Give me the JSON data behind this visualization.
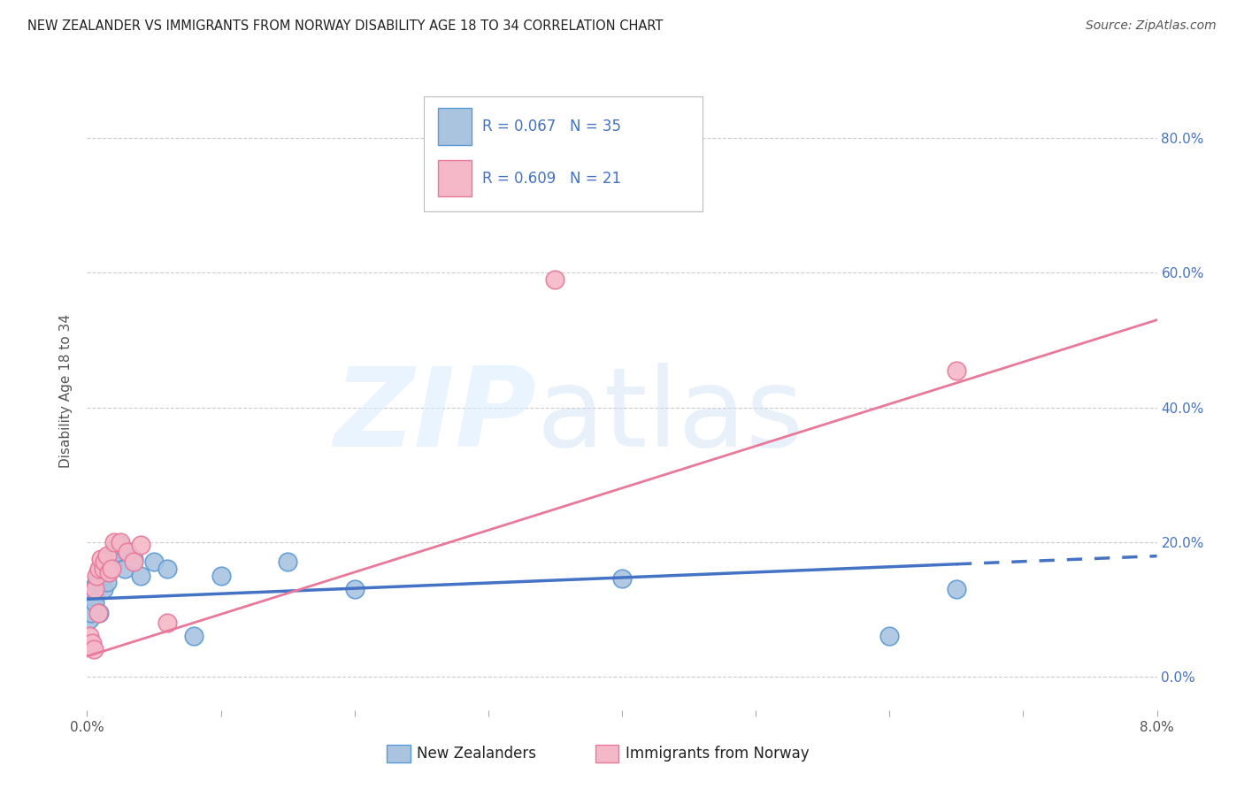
{
  "title": "NEW ZEALANDER VS IMMIGRANTS FROM NORWAY DISABILITY AGE 18 TO 34 CORRELATION CHART",
  "source": "Source: ZipAtlas.com",
  "ylabel": "Disability Age 18 to 34",
  "xlim": [
    0.0,
    0.08
  ],
  "ylim": [
    -0.05,
    0.9
  ],
  "background_color": "#ffffff",
  "nz_color": "#aac4e0",
  "nz_edge_color": "#5b9bd5",
  "norway_color": "#f4b8c8",
  "norway_edge_color": "#e8799a",
  "nz_line_color": "#4472c4",
  "norway_line_color": "#e8799a",
  "nz_R": 0.067,
  "nz_N": 35,
  "norway_R": 0.609,
  "norway_N": 21,
  "legend_label_nz": "New Zealanders",
  "legend_label_norway": "Immigrants from Norway",
  "nz_x": [
    0.0002,
    0.0003,
    0.0004,
    0.0005,
    0.0006,
    0.0007,
    0.0008,
    0.0009,
    0.001,
    0.0011,
    0.0012,
    0.0013,
    0.0014,
    0.0015,
    0.0016,
    0.0017,
    0.0018,
    0.0019,
    0.002,
    0.0021,
    0.0022,
    0.0025,
    0.0028,
    0.003,
    0.0035,
    0.004,
    0.005,
    0.006,
    0.008,
    0.01,
    0.015,
    0.02,
    0.04,
    0.06,
    0.065
  ],
  "nz_y": [
    0.085,
    0.095,
    0.13,
    0.12,
    0.11,
    0.14,
    0.155,
    0.095,
    0.145,
    0.16,
    0.13,
    0.15,
    0.165,
    0.14,
    0.17,
    0.175,
    0.18,
    0.165,
    0.175,
    0.19,
    0.185,
    0.195,
    0.16,
    0.185,
    0.175,
    0.15,
    0.17,
    0.16,
    0.06,
    0.15,
    0.17,
    0.13,
    0.145,
    0.06,
    0.13
  ],
  "norway_x": [
    0.0002,
    0.0004,
    0.0005,
    0.0006,
    0.0007,
    0.0008,
    0.0009,
    0.001,
    0.0012,
    0.0013,
    0.0015,
    0.0016,
    0.0018,
    0.002,
    0.0025,
    0.003,
    0.0035,
    0.004,
    0.006,
    0.035,
    0.065
  ],
  "norway_y": [
    0.06,
    0.05,
    0.04,
    0.13,
    0.15,
    0.095,
    0.16,
    0.175,
    0.16,
    0.17,
    0.18,
    0.155,
    0.16,
    0.2,
    0.2,
    0.185,
    0.17,
    0.195,
    0.08,
    0.59,
    0.455
  ],
  "nz_line_x": [
    0.0,
    0.065,
    0.065,
    0.08
  ],
  "nz_line_solid_end": 0.065,
  "nz_line_dash_start": 0.065,
  "norway_line_x_start": 0.0,
  "norway_line_x_end": 0.08
}
